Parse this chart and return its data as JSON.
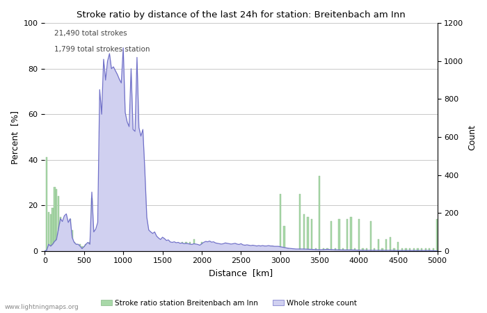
{
  "title": "Stroke ratio by distance of the last 24h for station: Breitenbach am Inn",
  "xlabel": "Distance  [km]",
  "ylabel_left": "Percent  [%]",
  "ylabel_right": "Count",
  "annotation_line1": "21,490 total strokes",
  "annotation_line2": "1,799 total strokes station",
  "xlim": [
    0,
    5000
  ],
  "ylim_left": [
    0,
    100
  ],
  "ylim_right": [
    0,
    1200
  ],
  "xticks": [
    0,
    500,
    1000,
    1500,
    2000,
    2500,
    3000,
    3500,
    4000,
    4500,
    5000
  ],
  "yticks_left": [
    0,
    20,
    40,
    60,
    80,
    100
  ],
  "yticks_right": [
    0,
    200,
    400,
    600,
    800,
    1000,
    1200
  ],
  "watermark": "www.lightningmaps.org",
  "legend_label_bar": "Stroke ratio station Breitenbach am Inn",
  "legend_label_fill": "Whole stroke count",
  "bar_color": "#a8d8a8",
  "fill_color": "#d0d0f0",
  "line_color": "#7070c8",
  "bar_edge_color": "#88b888",
  "background_color": "#ffffff",
  "grid_color": "#c8c8c8",
  "bar_distances": [
    25,
    50,
    75,
    100,
    125,
    150,
    175,
    200,
    225,
    250,
    275,
    300,
    325,
    350,
    375,
    400,
    425,
    450,
    475,
    500,
    525,
    550,
    575,
    600,
    625,
    650,
    675,
    700,
    725,
    750,
    775,
    800,
    825,
    850,
    875,
    900,
    925,
    950,
    975,
    1000,
    1025,
    1050,
    1075,
    1100,
    1125,
    1150,
    1175,
    1200,
    1225,
    1250,
    1275,
    1300,
    1325,
    1350,
    1375,
    1400,
    1425,
    1450,
    1475,
    1500,
    1550,
    1600,
    1650,
    1700,
    1750,
    1800,
    1850,
    1900,
    1950,
    2000,
    2050,
    2100,
    2150,
    2200,
    2250,
    2300,
    2350,
    2400,
    2450,
    2500,
    2550,
    2600,
    2650,
    2700,
    2750,
    2800,
    2850,
    2900,
    2950,
    3000,
    3050,
    3100,
    3150,
    3200,
    3250,
    3300,
    3350,
    3400,
    3450,
    3500,
    3550,
    3600,
    3650,
    3700,
    3750,
    3800,
    3850,
    3900,
    3950,
    4000,
    4050,
    4100,
    4150,
    4200,
    4250,
    4300,
    4350,
    4400,
    4450,
    4500,
    4550,
    4600,
    4650,
    4700,
    4750,
    4800,
    4850,
    4900,
    4950,
    5000
  ],
  "bar_values": [
    41,
    17,
    16,
    19,
    28,
    27,
    24,
    15,
    12,
    13,
    11,
    8,
    14,
    9,
    4,
    3,
    2,
    3,
    2,
    2,
    3,
    3,
    4,
    23,
    6,
    6,
    7,
    13,
    12,
    19,
    11,
    10,
    10,
    5,
    5,
    4,
    4,
    3,
    4,
    4,
    11,
    4,
    6,
    4,
    11,
    5,
    21,
    4,
    4,
    5,
    14,
    4,
    3,
    4,
    4,
    6,
    4,
    4,
    3,
    4,
    2,
    1,
    2,
    1,
    4,
    4,
    4,
    5,
    2,
    4,
    1,
    2,
    1,
    1,
    2,
    2,
    1,
    1,
    1,
    2,
    1,
    1,
    2,
    2,
    1,
    1,
    2,
    2,
    1,
    25,
    11,
    1,
    0,
    0,
    25,
    16,
    15,
    14,
    1,
    33,
    1,
    1,
    13,
    1,
    14,
    1,
    14,
    15,
    1,
    14,
    1,
    1,
    13,
    1,
    5,
    1,
    5,
    6,
    1,
    4,
    1,
    1,
    1,
    1,
    1,
    1,
    1,
    1,
    1,
    14
  ],
  "stroke_x": [
    0,
    25,
    50,
    75,
    100,
    125,
    150,
    175,
    200,
    225,
    250,
    275,
    300,
    325,
    350,
    375,
    400,
    425,
    450,
    475,
    500,
    525,
    550,
    575,
    600,
    625,
    650,
    675,
    700,
    725,
    750,
    775,
    800,
    825,
    850,
    875,
    900,
    925,
    950,
    975,
    1000,
    1025,
    1050,
    1075,
    1100,
    1125,
    1150,
    1175,
    1200,
    1225,
    1250,
    1275,
    1300,
    1325,
    1350,
    1375,
    1400,
    1425,
    1450,
    1475,
    1500,
    1525,
    1550,
    1575,
    1600,
    1625,
    1650,
    1675,
    1700,
    1725,
    1750,
    1775,
    1800,
    1825,
    1850,
    1875,
    1900,
    1925,
    1950,
    1975,
    2000,
    2025,
    2050,
    2075,
    2100,
    2125,
    2150,
    2175,
    2200,
    2225,
    2250,
    2275,
    2300,
    2325,
    2350,
    2375,
    2400,
    2425,
    2450,
    2475,
    2500,
    2525,
    2550,
    2575,
    2600,
    2625,
    2650,
    2675,
    2700,
    2725,
    2750,
    2775,
    2800,
    2825,
    2850,
    2875,
    2900,
    2925,
    2950,
    2975,
    3000,
    3025,
    3050,
    3075,
    3100,
    3200,
    3300,
    3400,
    3500,
    3600,
    3700,
    3800,
    3900,
    4000,
    4100,
    4200,
    4300,
    4400,
    4500,
    4600,
    4700,
    4800,
    4900,
    5000
  ],
  "stroke_y": [
    0,
    3,
    35,
    25,
    35,
    50,
    60,
    115,
    170,
    155,
    185,
    195,
    150,
    170,
    70,
    45,
    35,
    35,
    25,
    12,
    22,
    35,
    45,
    35,
    310,
    100,
    115,
    150,
    850,
    720,
    1010,
    900,
    1000,
    1040,
    960,
    970,
    950,
    930,
    905,
    885,
    1070,
    730,
    680,
    655,
    960,
    640,
    630,
    1020,
    650,
    605,
    640,
    425,
    178,
    110,
    100,
    92,
    100,
    78,
    68,
    60,
    72,
    65,
    55,
    58,
    47,
    45,
    48,
    43,
    45,
    40,
    42,
    38,
    40,
    38,
    36,
    34,
    38,
    36,
    34,
    30,
    38,
    45,
    50,
    48,
    52,
    46,
    48,
    42,
    40,
    38,
    36,
    38,
    42,
    40,
    38,
    36,
    38,
    40,
    36,
    34,
    38,
    32,
    30,
    32,
    30,
    28,
    30,
    28,
    26,
    28,
    26,
    28,
    26,
    26,
    28,
    26,
    26,
    24,
    24,
    24,
    22,
    20,
    18,
    16,
    14,
    10,
    10,
    8,
    6,
    8,
    6,
    5,
    5,
    4,
    3,
    3,
    3,
    3,
    2,
    2,
    2,
    2,
    2,
    0
  ]
}
